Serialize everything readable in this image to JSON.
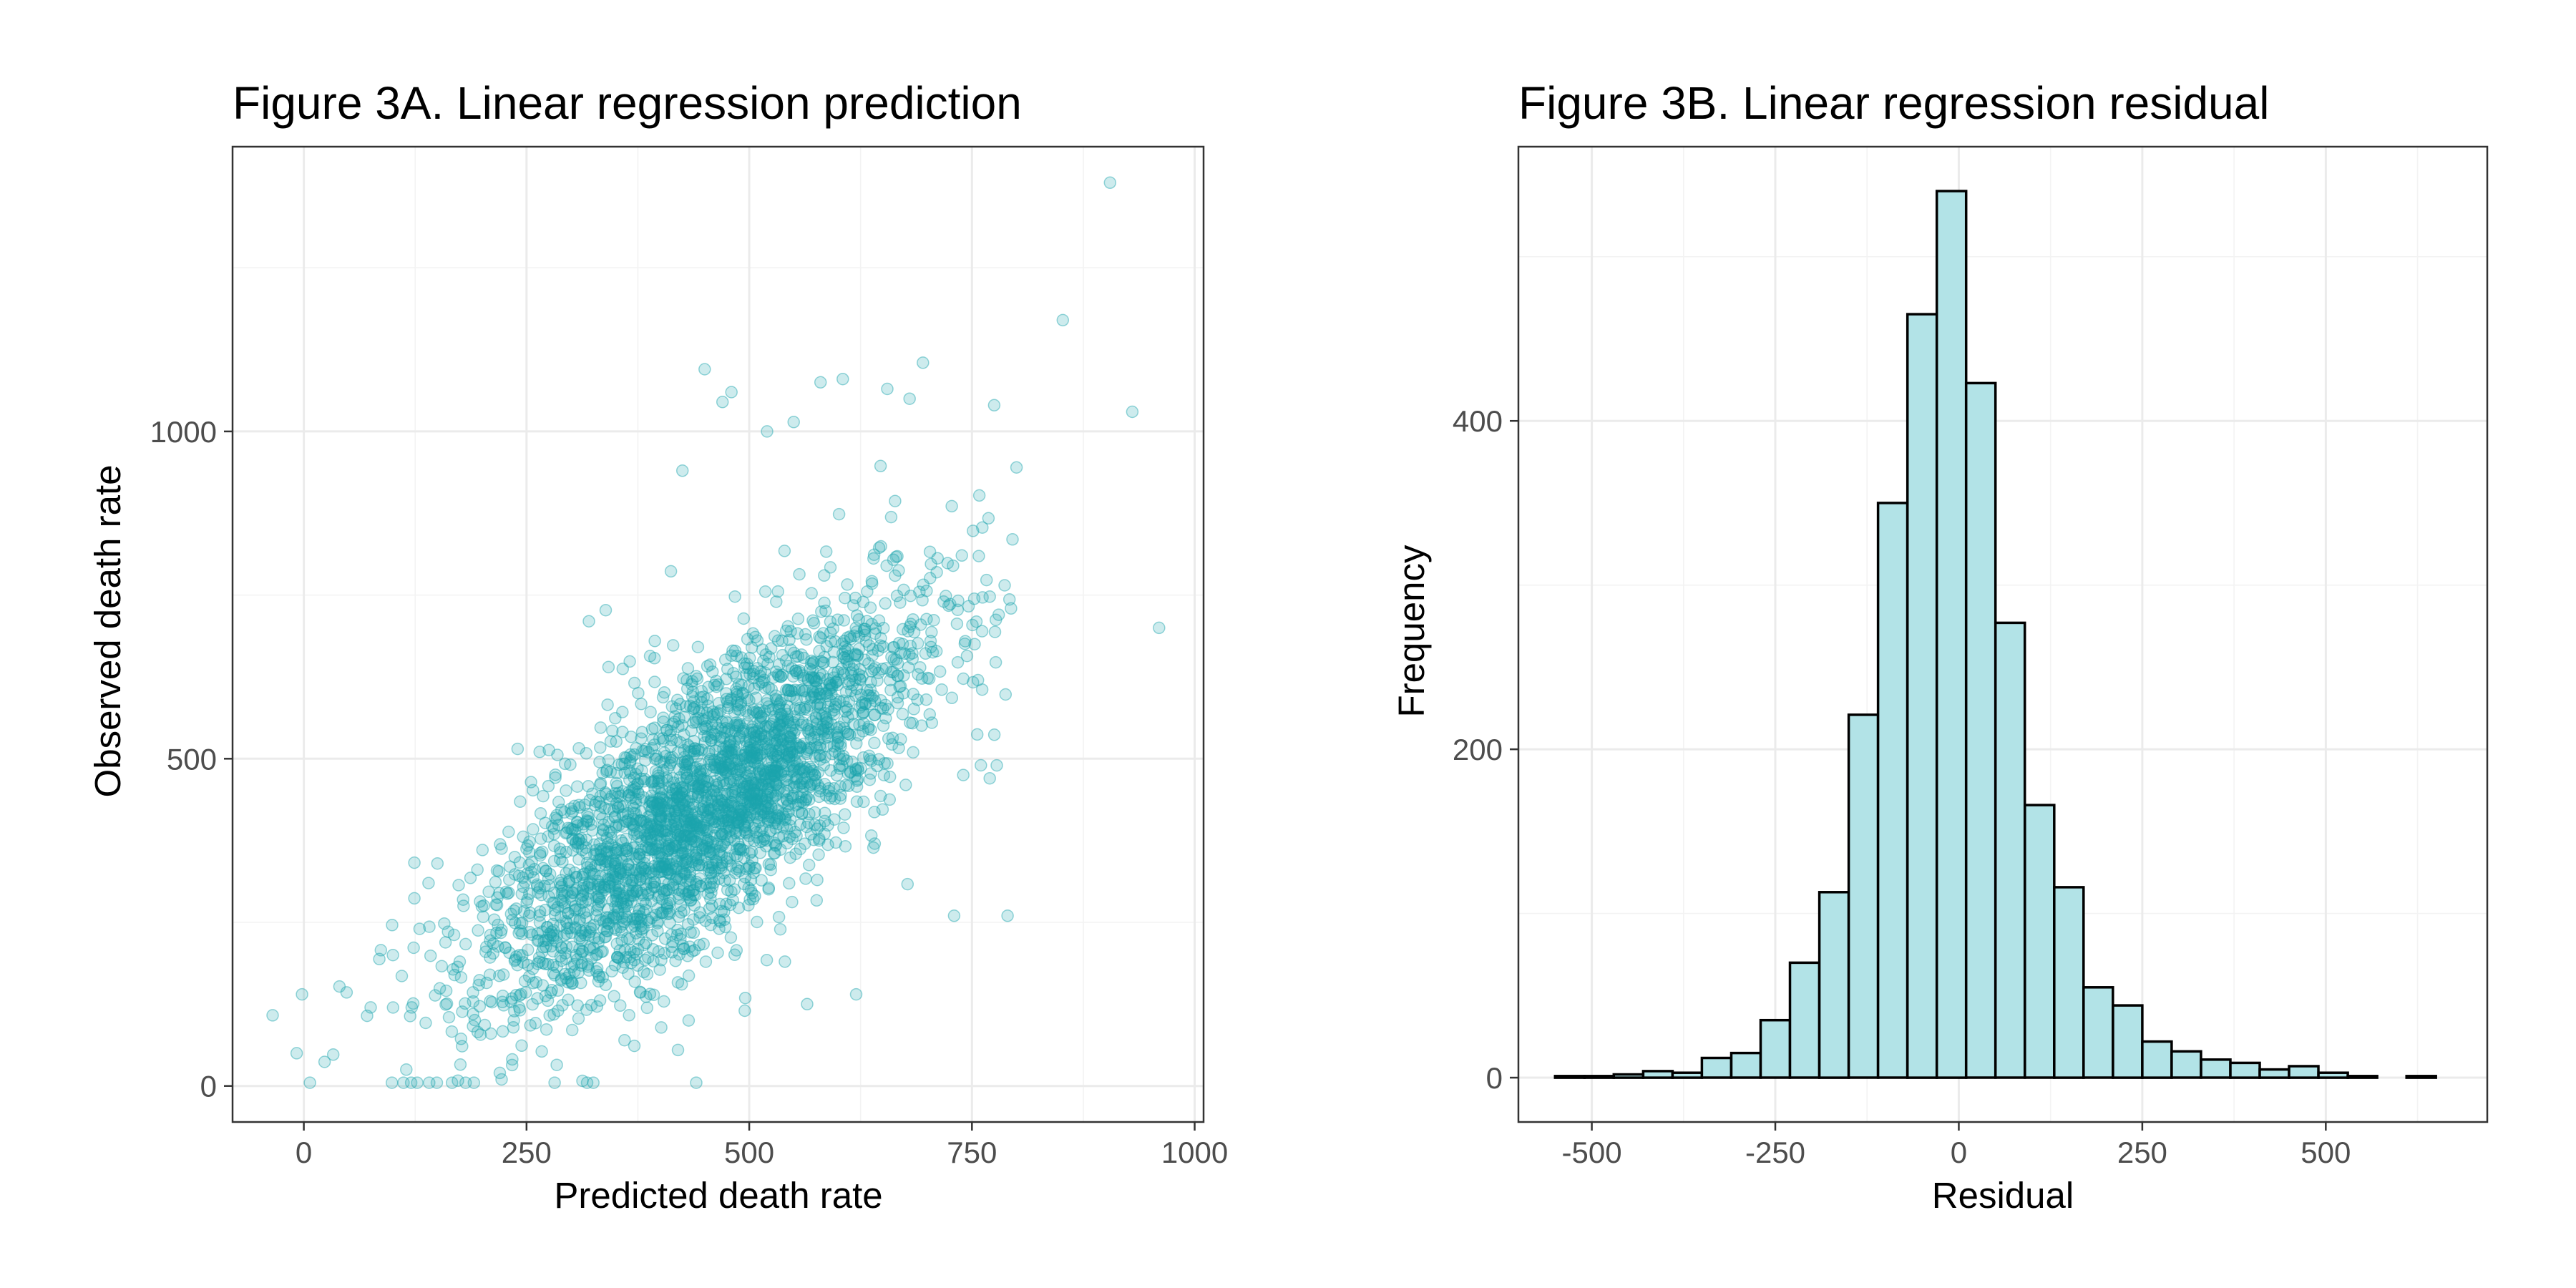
{
  "chart_data": [
    {
      "type": "scatter",
      "title": "Figure 3A. Linear regression prediction",
      "xlabel": "Predicted death rate",
      "ylabel": "Observed death rate",
      "xlim": [
        -80,
        1010
      ],
      "ylim": [
        -55,
        1435
      ],
      "x_ticks": [
        0,
        250,
        500,
        750,
        1000
      ],
      "x_tick_labels": [
        "0",
        "250",
        "500",
        "750",
        "1000"
      ],
      "y_ticks": [
        0,
        500,
        1000
      ],
      "y_tick_labels": [
        "0",
        "500",
        "1000"
      ],
      "grid": true,
      "point_color": "#1aa3ad",
      "point_opacity": 0.22,
      "approx_point_count": 3000,
      "points": [
        [
          -35,
          108
        ],
        [
          -2,
          140
        ],
        [
          -8,
          50
        ],
        [
          33,
          48
        ],
        [
          40,
          152
        ],
        [
          48,
          143
        ],
        [
          75,
          120
        ],
        [
          100,
          200
        ],
        [
          110,
          168
        ],
        [
          115,
          25
        ],
        [
          130,
          240
        ],
        [
          140,
          310
        ],
        [
          150,
          340
        ],
        [
          163,
          105
        ],
        [
          175,
          190
        ],
        [
          190,
          110
        ],
        [
          210,
          80
        ],
        [
          220,
          20
        ],
        [
          222,
          10
        ],
        [
          240,
          515
        ],
        [
          242,
          200
        ],
        [
          265,
          250
        ],
        [
          280,
          230
        ],
        [
          300,
          160
        ],
        [
          320,
          710
        ],
        [
          342,
          640
        ],
        [
          360,
          70
        ],
        [
          372,
          365
        ],
        [
          410,
          300
        ],
        [
          420,
          55
        ],
        [
          425,
          940
        ],
        [
          430,
          620
        ],
        [
          440,
          560
        ],
        [
          450,
          1095
        ],
        [
          470,
          1045
        ],
        [
          480,
          1060
        ],
        [
          490,
          420
        ],
        [
          495,
          115
        ],
        [
          520,
          1000
        ],
        [
          540,
          190
        ],
        [
          565,
          125
        ],
        [
          580,
          1075
        ],
        [
          605,
          1080
        ],
        [
          620,
          140
        ],
        [
          655,
          1065
        ],
        [
          680,
          1050
        ],
        [
          695,
          1105
        ],
        [
          705,
          555
        ],
        [
          730,
          260
        ],
        [
          760,
          490
        ],
        [
          770,
          470
        ],
        [
          775,
          1040
        ],
        [
          780,
          720
        ],
        [
          790,
          260
        ],
        [
          800,
          945
        ],
        [
          852,
          1170
        ],
        [
          905,
          1380
        ],
        [
          930,
          1030
        ],
        [
          960,
          700
        ],
        [
          600,
          620
        ]
      ]
    },
    {
      "type": "bar",
      "subtype": "histogram",
      "title": "Figure 3B. Linear regression residual",
      "xlabel": "Residual",
      "ylabel": "Frequency",
      "xlim": [
        -600,
        720
      ],
      "ylim": [
        -27,
        567
      ],
      "x_ticks": [
        -500,
        -250,
        0,
        250,
        500
      ],
      "x_tick_labels": [
        "-500",
        "-250",
        "0",
        "250",
        "500"
      ],
      "y_ticks": [
        0,
        200,
        400
      ],
      "y_tick_labels": [
        "0",
        "200",
        "400"
      ],
      "grid": true,
      "bar_fill": "#b2e3e7",
      "bar_stroke": "#000000",
      "bin_edges": [
        -550,
        -510,
        -470,
        -430,
        -390,
        -350,
        -310,
        -270,
        -230,
        -190,
        -150,
        -110,
        -70,
        -30,
        10,
        50,
        90,
        130,
        170,
        210,
        250,
        290,
        330,
        370,
        410,
        450,
        490,
        530,
        570,
        610,
        650
      ],
      "counts": [
        1,
        1,
        2,
        4,
        3,
        12,
        15,
        35,
        70,
        113,
        221,
        350,
        465,
        540,
        423,
        277,
        166,
        116,
        55,
        44,
        22,
        16,
        11,
        9,
        5,
        7,
        3,
        1,
        0,
        1
      ]
    }
  ]
}
